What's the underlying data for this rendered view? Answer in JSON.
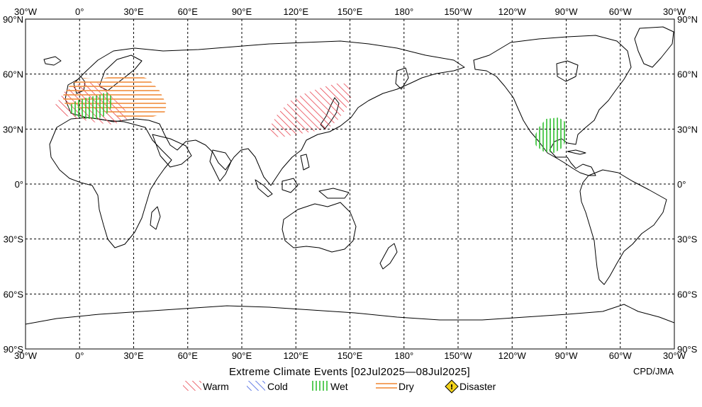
{
  "map": {
    "title": "Extreme Climate Events [02Jul2025—08Jul2025]",
    "credit": "CPD/JMA",
    "lon_labels": [
      "30°W",
      "0°",
      "30°E",
      "60°E",
      "90°E",
      "120°E",
      "150°E",
      "180°",
      "150°W",
      "120°W",
      "90°W",
      "60°W",
      "30°W"
    ],
    "lat_labels": [
      "90°N",
      "60°N",
      "30°N",
      "0°",
      "30°S",
      "60°S",
      "90°S"
    ],
    "lon_range": [
      -30,
      330
    ],
    "lat_range": [
      -90,
      90
    ],
    "grid": "dashed, every 30°",
    "events": [
      {
        "type": "warm",
        "region": "Western Europe / western Mediterranean"
      },
      {
        "type": "dry",
        "region": "Europe"
      },
      {
        "type": "wet",
        "region": "Central Europe / Alps"
      },
      {
        "type": "warm",
        "region": "East Asia (Japan, Korea, eastern China)"
      },
      {
        "type": "wet",
        "region": "Mexico / southern United States"
      }
    ]
  },
  "legend": {
    "items": [
      {
        "key": "warm",
        "label": "Warm",
        "color": "#e8434f"
      },
      {
        "key": "cold",
        "label": "Cold",
        "color": "#3b5be0"
      },
      {
        "key": "wet",
        "label": "Wet",
        "color": "#2fbf2f"
      },
      {
        "key": "dry",
        "label": "Dry",
        "color": "#f08c3c"
      },
      {
        "key": "disaster",
        "label": "Disaster",
        "color": "#f2d21b"
      }
    ]
  }
}
